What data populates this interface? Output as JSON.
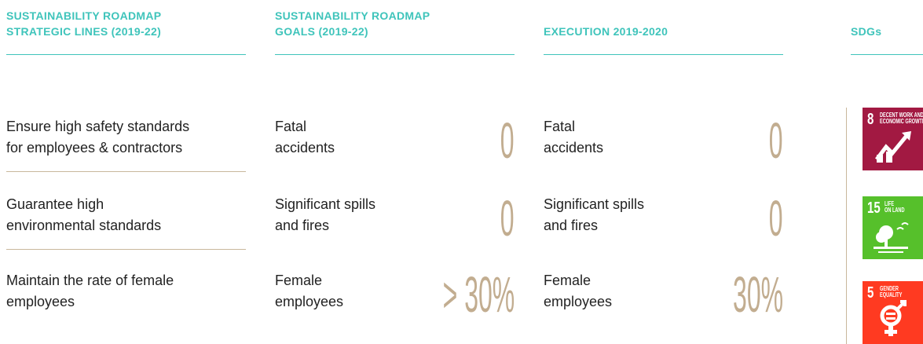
{
  "header": {
    "columns": [
      {
        "line1": "SUSTAINABILITY ROADMAP",
        "line2": "STRATEGIC LINES (2019-22)"
      },
      {
        "line1": "SUSTAINABILITY ROADMAP",
        "line2": "GOALS (2019-22)"
      },
      {
        "line1": "EXECUTION 2019-2020"
      },
      {
        "line1": "SDGs"
      }
    ]
  },
  "rows": [
    {
      "line": [
        "Ensure high safety standards",
        "for employees & contractors"
      ],
      "goal": {
        "label": [
          "Fatal",
          "accidents"
        ],
        "value": "0"
      },
      "execution": {
        "label": [
          "Fatal",
          "accidents"
        ],
        "value": "0"
      },
      "sdg": {
        "number": "8",
        "label": [
          "DECENT WORK AND",
          "ECONOMIC GROWTH"
        ]
      }
    },
    {
      "line": [
        "Guarantee high",
        "environmental standards"
      ],
      "goal": {
        "label": [
          "Significant spills",
          "and fires"
        ],
        "value": "0"
      },
      "execution": {
        "label": [
          "Significant spills",
          "and fires"
        ],
        "value": "0"
      },
      "sdg": {
        "number": "15",
        "label": [
          "LIFE",
          "ON LAND"
        ]
      }
    },
    {
      "line": [
        "Maintain the rate of female",
        "employees"
      ],
      "goal": {
        "label": [
          "Female",
          "employees"
        ],
        "value": "> 30%"
      },
      "execution": {
        "label": [
          "Female",
          "employees"
        ],
        "value": "30%"
      },
      "sdg": {
        "number": "5",
        "label": [
          "GENDER",
          "EQUALITY"
        ]
      }
    }
  ]
}
